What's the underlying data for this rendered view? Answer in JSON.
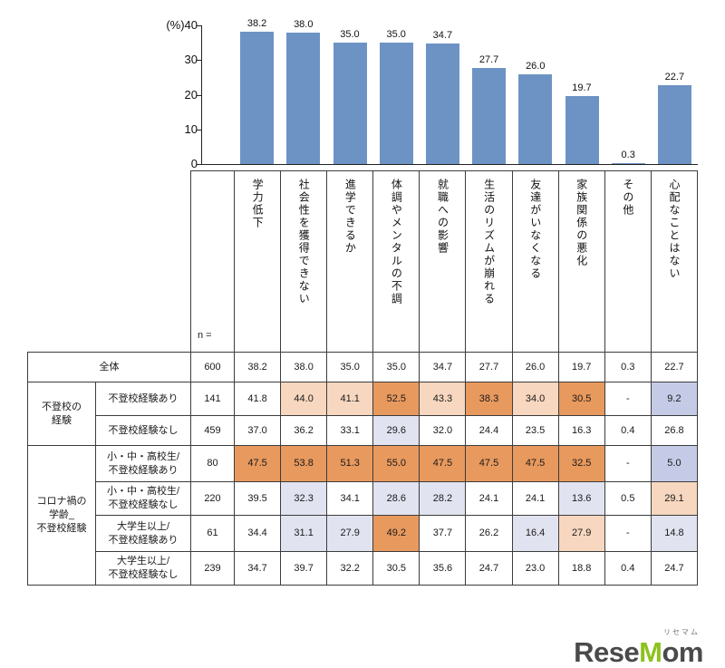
{
  "chart_data": {
    "type": "bar",
    "title": "",
    "unit_label": "(%)",
    "ylim": [
      0,
      40
    ],
    "yticks": [
      40,
      30,
      20,
      10,
      0
    ],
    "grid": false,
    "legend": "none",
    "bar_color": "#6d93c4",
    "categories": [
      "学力低下",
      "社会性を獲得できない",
      "進学できるか",
      "体調やメンタルの不調",
      "就職への影響",
      "生活のリズムが崩れる",
      "友達がいなくなる",
      "家族関係の悪化",
      "その他",
      "心配なことはない"
    ],
    "values": [
      38.2,
      38.0,
      35.0,
      35.0,
      34.7,
      27.7,
      26.0,
      19.7,
      0.3,
      22.7
    ],
    "value_labels": [
      "38.2",
      "38.0",
      "35.0",
      "35.0",
      "34.7",
      "27.7",
      "26.0",
      "19.7",
      "0.3",
      "22.7"
    ]
  },
  "table": {
    "n_header": "n =",
    "columns": [
      "学力低下",
      "社会性を獲得できない",
      "進学できるか",
      "体調やメンタルの不調",
      "就職への影響",
      "生活のリズムが崩れる",
      "友達がいなくなる",
      "家族関係の悪化",
      "その他",
      "心配なことはない"
    ],
    "highlight_colors": {
      "o1": "#f7d7bf",
      "o2": "#e8995e",
      "b1": "#e1e3f0",
      "b2": "#c5cbe6"
    },
    "rows": [
      {
        "label_span": 2,
        "label": "全体",
        "n": "600",
        "values": [
          "38.2",
          "38.0",
          "35.0",
          "35.0",
          "34.7",
          "27.7",
          "26.0",
          "19.7",
          "0.3",
          "22.7"
        ],
        "marks": [
          "",
          "",
          "",
          "",
          "",
          "",
          "",
          "",
          "",
          ""
        ]
      },
      {
        "group": {
          "label": "不登校の\n経験",
          "span": 2
        },
        "label": "不登校経験あり",
        "n": "141",
        "values": [
          "41.8",
          "44.0",
          "41.1",
          "52.5",
          "43.3",
          "38.3",
          "34.0",
          "30.5",
          "-",
          "9.2"
        ],
        "marks": [
          "",
          "o1",
          "o1",
          "o2",
          "o1",
          "o2",
          "o1",
          "o2",
          "",
          "b2"
        ]
      },
      {
        "label": "不登校経験なし",
        "n": "459",
        "values": [
          "37.0",
          "36.2",
          "33.1",
          "29.6",
          "32.0",
          "24.4",
          "23.5",
          "16.3",
          "0.4",
          "26.8"
        ],
        "marks": [
          "",
          "",
          "",
          "b1",
          "",
          "",
          "",
          "",
          "",
          ""
        ]
      },
      {
        "group": {
          "label": "コロナ禍の\n学齢_\n不登校経験",
          "span": 4
        },
        "label": "小・中・高校生/\n不登校経験あり",
        "n": "80",
        "values": [
          "47.5",
          "53.8",
          "51.3",
          "55.0",
          "47.5",
          "47.5",
          "47.5",
          "32.5",
          "-",
          "5.0"
        ],
        "marks": [
          "o2",
          "o2",
          "o2",
          "o2",
          "o2",
          "o2",
          "o2",
          "o2",
          "",
          "b2"
        ]
      },
      {
        "label": "小・中・高校生/\n不登校経験なし",
        "n": "220",
        "values": [
          "39.5",
          "32.3",
          "34.1",
          "28.6",
          "28.2",
          "24.1",
          "24.1",
          "13.6",
          "0.5",
          "29.1"
        ],
        "marks": [
          "",
          "b1",
          "",
          "b1",
          "b1",
          "",
          "",
          "b1",
          "",
          "o1"
        ]
      },
      {
        "label": "大学生以上/\n不登校経験あり",
        "n": "61",
        "values": [
          "34.4",
          "31.1",
          "27.9",
          "49.2",
          "37.7",
          "26.2",
          "16.4",
          "27.9",
          "-",
          "14.8"
        ],
        "marks": [
          "",
          "b1",
          "b1",
          "o2",
          "",
          "",
          "b1",
          "o1",
          "",
          "b1"
        ]
      },
      {
        "label": "大学生以上/\n不登校経験なし",
        "n": "239",
        "values": [
          "34.7",
          "39.7",
          "32.2",
          "30.5",
          "35.6",
          "24.7",
          "23.0",
          "18.8",
          "0.4",
          "24.7"
        ],
        "marks": [
          "",
          "",
          "",
          "",
          "",
          "",
          "",
          "",
          "",
          ""
        ]
      }
    ]
  },
  "logo": {
    "kana": "リセマム",
    "part1": "Rese",
    "accent": "M",
    "part2": "om",
    "accent_color": "#8dc21f"
  }
}
